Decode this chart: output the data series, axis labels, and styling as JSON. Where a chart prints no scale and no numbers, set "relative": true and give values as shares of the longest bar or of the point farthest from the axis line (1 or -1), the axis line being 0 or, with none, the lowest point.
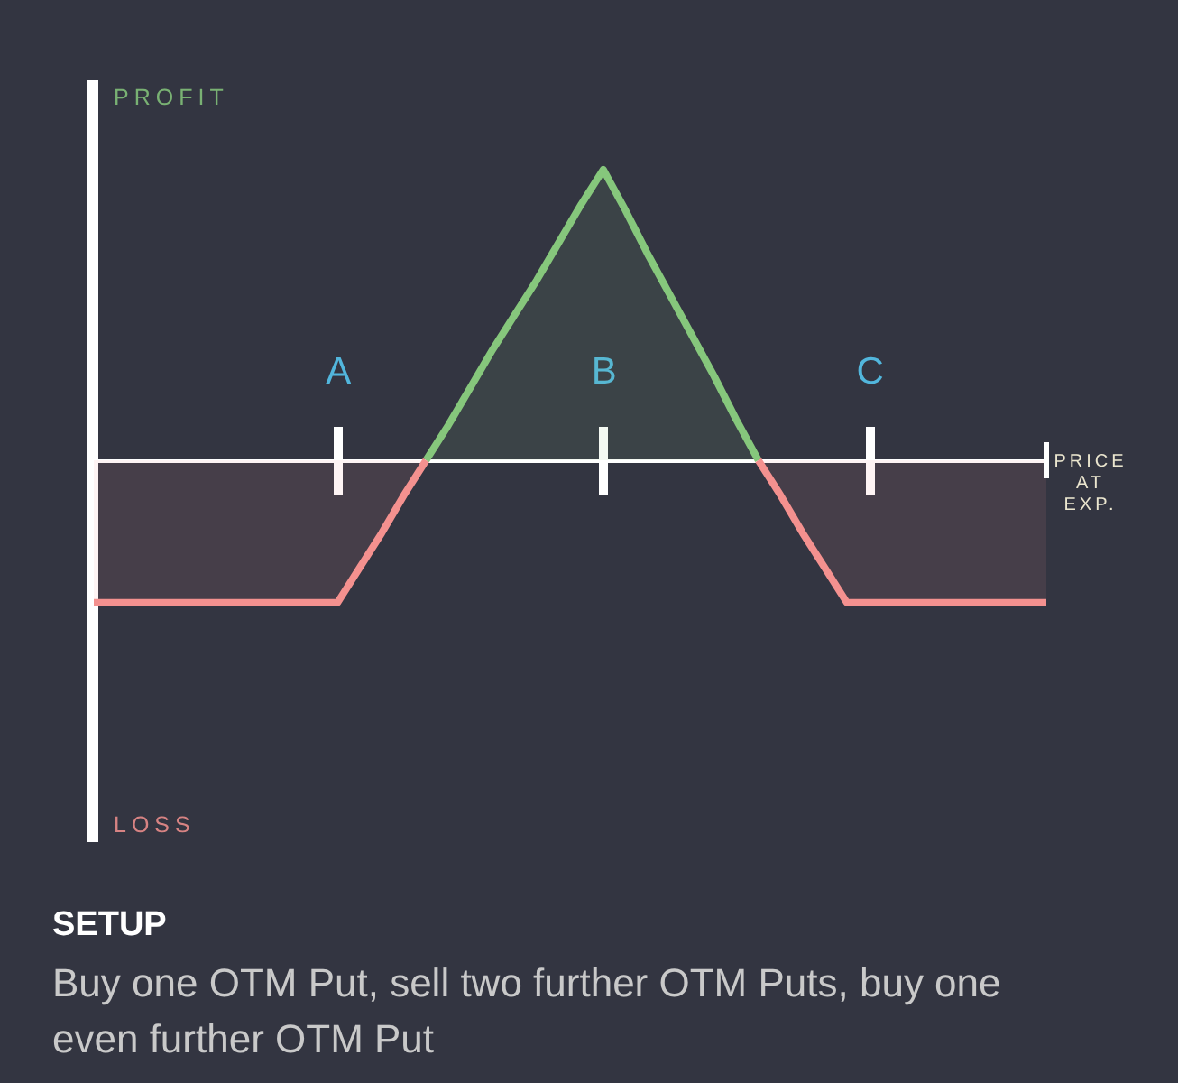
{
  "chart_data": {
    "type": "area",
    "relative": true,
    "tick_labels": "x",
    "title": "SETUP",
    "subtitle": "Buy one OTM Put, sell two further OTM Puts, buy one even further OTM Put",
    "xlabel": "PRICE AT EXP.",
    "annotations": [
      "PROFIT",
      "LOSS"
    ],
    "categories": [
      null,
      null,
      null,
      null,
      null,
      null,
      null,
      null,
      null,
      null,
      null,
      "A",
      null,
      null,
      null,
      null,
      null,
      null,
      null,
      null,
      null,
      null,
      null,
      "B",
      null,
      null,
      null,
      null,
      null,
      null,
      null,
      null,
      null,
      null,
      null,
      "C",
      null,
      null,
      null,
      null,
      null,
      null,
      null,
      null
    ],
    "series": [
      {
        "color": "#86c77c",
        "values": [
          null,
          null,
          null,
          null,
          null,
          null,
          null,
          null,
          null,
          null,
          null,
          null,
          null,
          null,
          null,
          0,
          0.12,
          0.25,
          0.38,
          0.5,
          0.62,
          0.75,
          0.88,
          1,
          0.86,
          0.71,
          0.57,
          0.43,
          0.29,
          0.14,
          0,
          null,
          null,
          null,
          null,
          null,
          null,
          null,
          null,
          null,
          null,
          null,
          null,
          null
        ]
      },
      {
        "color": "#f4918f",
        "values": [
          -0.49,
          -0.49,
          -0.49,
          -0.49,
          -0.49,
          -0.49,
          -0.49,
          -0.49,
          -0.49,
          -0.49,
          -0.49,
          -0.49,
          -0.37,
          -0.25,
          -0.12,
          0,
          null,
          null,
          null,
          null,
          null,
          null,
          null,
          null,
          null,
          null,
          null,
          null,
          null,
          null,
          0,
          -0.12,
          -0.25,
          -0.37,
          -0.49,
          -0.49,
          -0.49,
          -0.49,
          -0.49,
          -0.49,
          -0.49,
          -0.49,
          -0.49,
          -0.49
        ]
      }
    ]
  }
}
